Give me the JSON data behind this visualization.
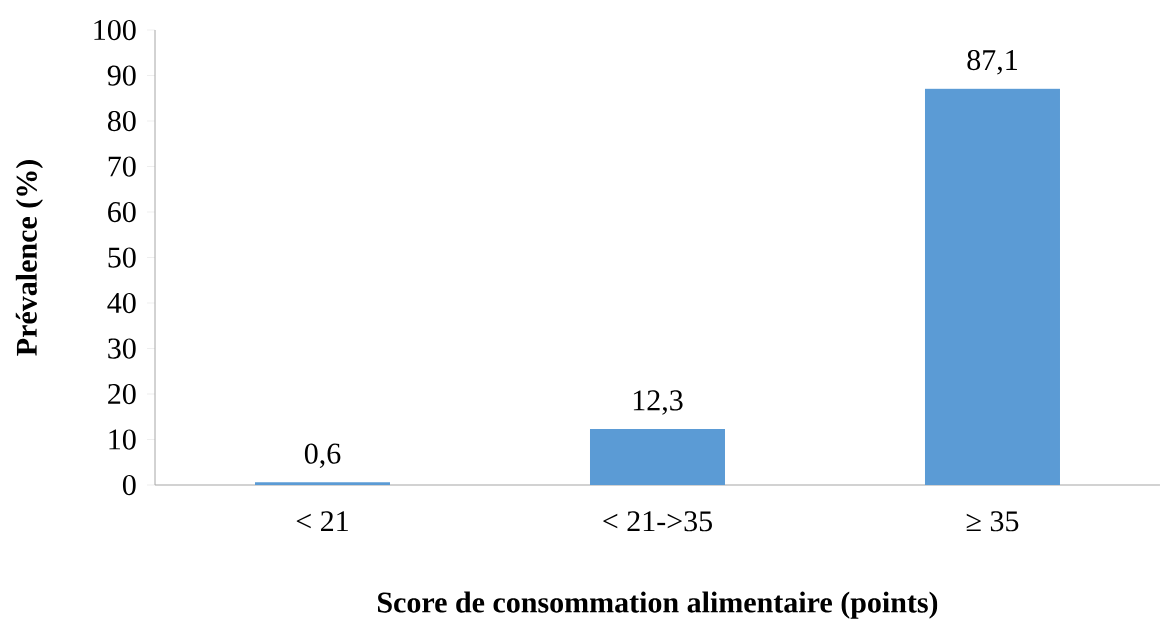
{
  "chart_data": {
    "type": "bar",
    "xlabel": "Score de consommation alimentaire (points)",
    "ylabel": "Prévalence (%)",
    "categories": [
      "< 21",
      "< 21->35",
      "≥ 35"
    ],
    "values": [
      0.6,
      12.3,
      87.1
    ],
    "value_labels": [
      "0,6",
      "12,3",
      "87,1"
    ],
    "color": "#5b9bd5",
    "ylim": [
      0,
      100
    ],
    "yticks": [
      0,
      10,
      20,
      30,
      40,
      50,
      60,
      70,
      80,
      90,
      100
    ],
    "grid": false
  }
}
